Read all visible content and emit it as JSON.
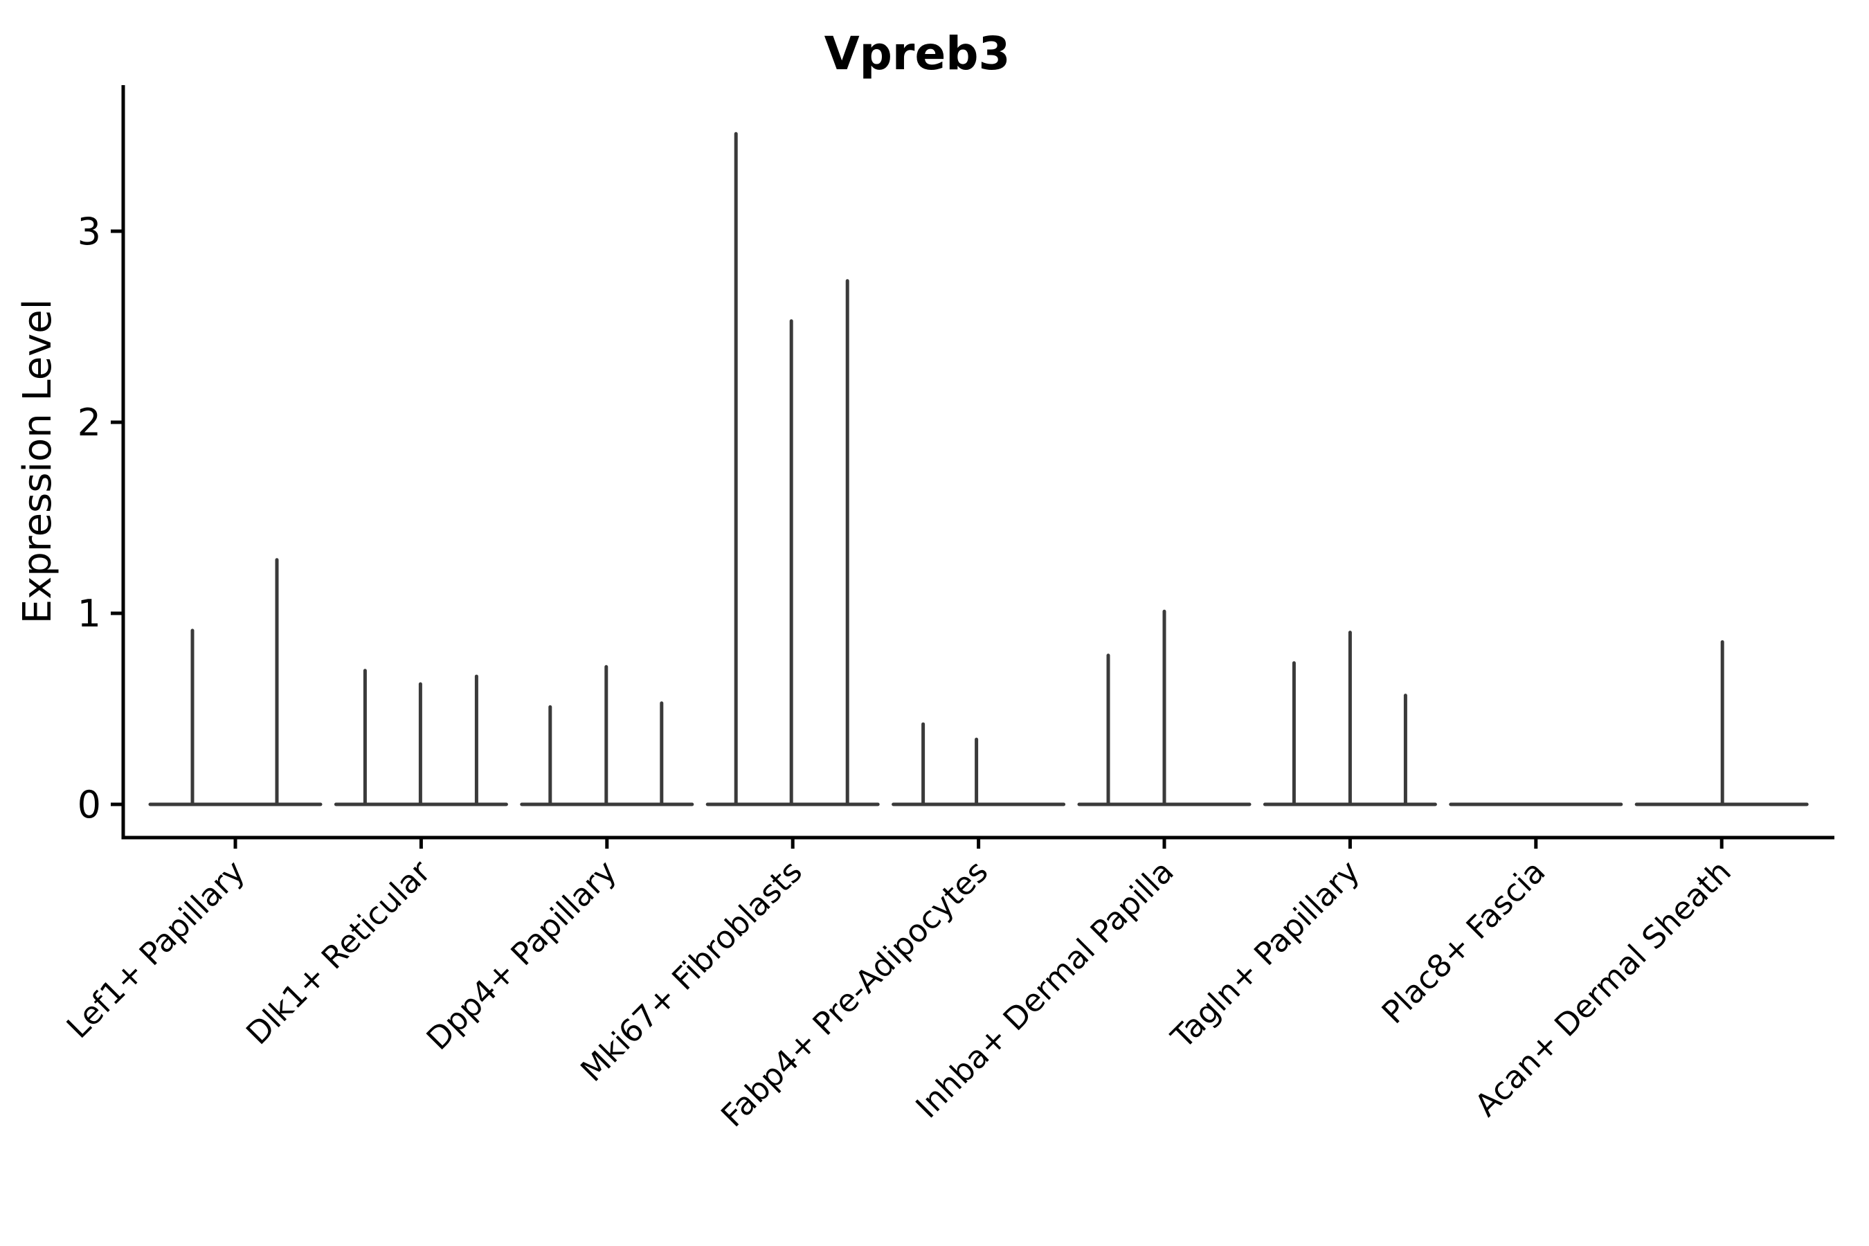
{
  "chart_data": {
    "type": "violin",
    "title": "Vpreb3",
    "ylabel": "Expression Level",
    "xlabel": "",
    "legend": "none",
    "grid": false,
    "background_color": "#ffffff",
    "axis_color": "#000000",
    "violin_color": "#3a3a3a",
    "ylim": [
      -0.17,
      3.76
    ],
    "ytick_values": [
      0,
      1,
      2,
      3
    ],
    "ytick_labels": [
      "0",
      "1",
      "2",
      "3"
    ],
    "baseline_value": 0,
    "categories": [
      "Lef1+ Papillary",
      "Dlk1+ Reticular",
      "Dpp4+ Papillary",
      "Mki67+ Fibroblasts",
      "Fabp4+ Pre-Adipocytes",
      "Inhba+ Dermal Papilla",
      "Tagln+ Papillary",
      "Plac8+ Fascia",
      "Acan+ Dermal Sheath"
    ],
    "groups": [
      {
        "name": "Lef1+ Papillary",
        "baseline": 0,
        "spikes": [
          {
            "dx": -62,
            "value": 0.91
          },
          {
            "dx": 60,
            "value": 1.28
          }
        ]
      },
      {
        "name": "Dlk1+ Reticular",
        "baseline": 0,
        "spikes": [
          {
            "dx": -81,
            "value": 0.7
          },
          {
            "dx": -1,
            "value": 0.63
          },
          {
            "dx": 80,
            "value": 0.67
          }
        ]
      },
      {
        "name": "Dpp4+ Papillary",
        "baseline": 0,
        "spikes": [
          {
            "dx": -82,
            "value": 0.51
          },
          {
            "dx": -1,
            "value": 0.72
          },
          {
            "dx": 79,
            "value": 0.53
          }
        ]
      },
      {
        "name": "Mki67+ Fibroblasts",
        "baseline": 0,
        "spikes": [
          {
            "dx": -82,
            "value": 3.51
          },
          {
            "dx": -2,
            "value": 2.53
          },
          {
            "dx": 79,
            "value": 2.74
          }
        ]
      },
      {
        "name": "Fabp4+ Pre-Adipocytes",
        "baseline": 0,
        "spikes": [
          {
            "dx": -80,
            "value": 0.42
          },
          {
            "dx": -3,
            "value": 0.34
          }
        ]
      },
      {
        "name": "Inhba+ Dermal Papilla",
        "baseline": 0,
        "spikes": [
          {
            "dx": -81,
            "value": 0.78
          },
          {
            "dx": 0,
            "value": 1.01
          }
        ]
      },
      {
        "name": "Tagln+ Papillary",
        "baseline": 0,
        "spikes": [
          {
            "dx": -81,
            "value": 0.74
          },
          {
            "dx": 0,
            "value": 0.9
          },
          {
            "dx": 80,
            "value": 0.57
          }
        ]
      },
      {
        "name": "Plac8+ Fascia",
        "baseline": 0,
        "spikes": []
      },
      {
        "name": "Acan+ Dermal Sheath",
        "baseline": 0,
        "spikes": [
          {
            "dx": 1,
            "value": 0.85
          }
        ]
      }
    ]
  }
}
